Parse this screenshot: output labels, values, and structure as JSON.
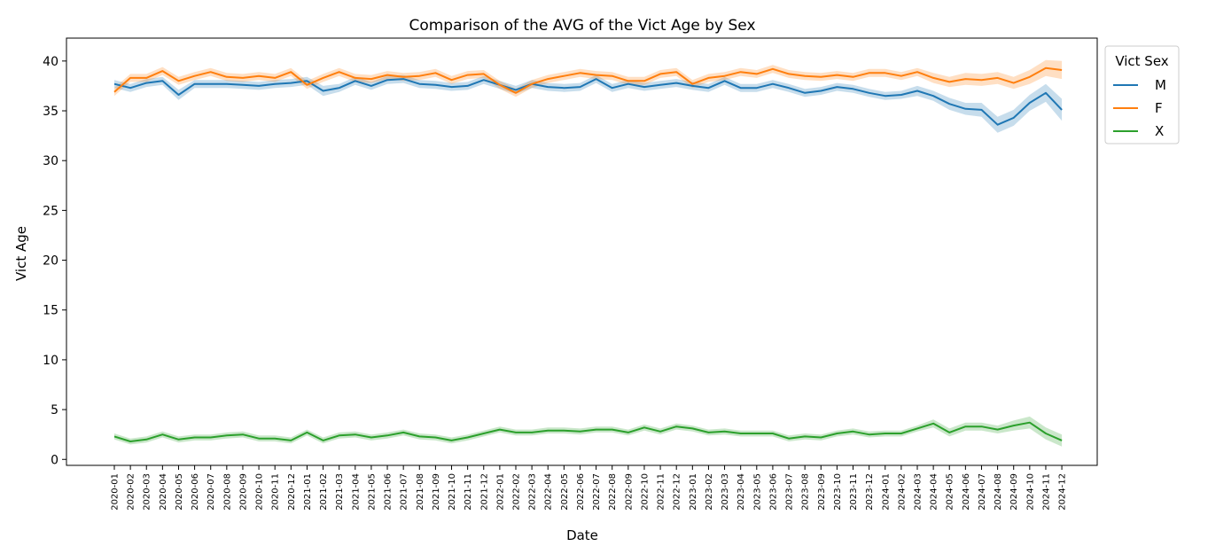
{
  "chart_data": {
    "type": "line",
    "title": "Comparison of the AVG of the Vict Age by Sex",
    "xlabel": "Date",
    "ylabel": "Vict Age",
    "ylim": [
      -0.6,
      42.3
    ],
    "yticks": [
      0,
      5,
      10,
      15,
      20,
      25,
      30,
      35,
      40
    ],
    "grid": false,
    "legend": {
      "title": "Vict Sex",
      "placement": "top-right outside"
    },
    "categories": [
      "2020-01",
      "2020-02",
      "2020-03",
      "2020-04",
      "2020-05",
      "2020-06",
      "2020-07",
      "2020-08",
      "2020-09",
      "2020-10",
      "2020-11",
      "2020-12",
      "2021-01",
      "2021-02",
      "2021-03",
      "2021-04",
      "2021-05",
      "2021-06",
      "2021-07",
      "2021-08",
      "2021-09",
      "2021-10",
      "2021-11",
      "2021-12",
      "2022-01",
      "2022-02",
      "2022-03",
      "2022-04",
      "2022-05",
      "2022-06",
      "2022-07",
      "2022-08",
      "2022-09",
      "2022-10",
      "2022-11",
      "2022-12",
      "2023-01",
      "2023-02",
      "2023-03",
      "2023-04",
      "2023-05",
      "2023-06",
      "2023-07",
      "2023-08",
      "2023-09",
      "2023-10",
      "2023-11",
      "2023-12",
      "2024-01",
      "2024-02",
      "2024-03",
      "2024-04",
      "2024-05",
      "2024-06",
      "2024-07",
      "2024-08",
      "2024-09",
      "2024-10",
      "2024-11",
      "2024-12"
    ],
    "series": [
      {
        "name": "M",
        "color": "#1f77b4",
        "values": [
          37.7,
          37.3,
          37.8,
          38.0,
          36.6,
          37.7,
          37.7,
          37.7,
          37.6,
          37.5,
          37.7,
          37.8,
          38.0,
          37.0,
          37.3,
          38.0,
          37.5,
          38.1,
          38.2,
          37.7,
          37.6,
          37.4,
          37.5,
          38.1,
          37.6,
          37.1,
          37.7,
          37.4,
          37.3,
          37.4,
          38.2,
          37.3,
          37.7,
          37.4,
          37.6,
          37.8,
          37.5,
          37.3,
          38.0,
          37.3,
          37.3,
          37.7,
          37.3,
          36.8,
          37.0,
          37.4,
          37.2,
          36.8,
          36.5,
          36.6,
          37.0,
          36.5,
          35.7,
          35.2,
          35.1,
          33.6,
          34.3,
          35.8,
          36.8,
          35.1
        ],
        "ci": [
          0.4,
          0.4,
          0.4,
          0.4,
          0.5,
          0.4,
          0.4,
          0.4,
          0.4,
          0.4,
          0.4,
          0.4,
          0.4,
          0.5,
          0.4,
          0.4,
          0.4,
          0.4,
          0.4,
          0.4,
          0.4,
          0.4,
          0.4,
          0.4,
          0.4,
          0.4,
          0.4,
          0.4,
          0.4,
          0.4,
          0.4,
          0.4,
          0.4,
          0.4,
          0.4,
          0.4,
          0.4,
          0.4,
          0.4,
          0.4,
          0.4,
          0.4,
          0.4,
          0.4,
          0.4,
          0.4,
          0.4,
          0.4,
          0.4,
          0.4,
          0.5,
          0.5,
          0.6,
          0.6,
          0.7,
          0.8,
          0.8,
          0.8,
          0.9,
          1.1
        ]
      },
      {
        "name": "F",
        "color": "#ff7f0e",
        "values": [
          36.9,
          38.3,
          38.3,
          39.0,
          38.0,
          38.5,
          38.9,
          38.4,
          38.3,
          38.5,
          38.3,
          38.9,
          37.6,
          38.3,
          38.9,
          38.3,
          38.2,
          38.6,
          38.4,
          38.5,
          38.8,
          38.1,
          38.6,
          38.7,
          37.6,
          36.8,
          37.7,
          38.2,
          38.5,
          38.8,
          38.6,
          38.5,
          38.0,
          38.0,
          38.7,
          38.9,
          37.7,
          38.3,
          38.5,
          38.9,
          38.7,
          39.2,
          38.7,
          38.5,
          38.4,
          38.6,
          38.4,
          38.8,
          38.8,
          38.5,
          38.9,
          38.3,
          37.9,
          38.2,
          38.1,
          38.3,
          37.8,
          38.4,
          39.3,
          39.1
        ],
        "ci": [
          0.4,
          0.4,
          0.4,
          0.4,
          0.4,
          0.4,
          0.4,
          0.4,
          0.4,
          0.4,
          0.4,
          0.4,
          0.4,
          0.4,
          0.4,
          0.4,
          0.4,
          0.4,
          0.4,
          0.4,
          0.4,
          0.4,
          0.4,
          0.4,
          0.4,
          0.4,
          0.4,
          0.4,
          0.4,
          0.4,
          0.4,
          0.4,
          0.4,
          0.4,
          0.4,
          0.4,
          0.4,
          0.4,
          0.4,
          0.4,
          0.4,
          0.4,
          0.4,
          0.4,
          0.4,
          0.4,
          0.4,
          0.4,
          0.4,
          0.4,
          0.4,
          0.5,
          0.5,
          0.6,
          0.6,
          0.6,
          0.6,
          0.7,
          0.8,
          0.9
        ]
      },
      {
        "name": "X",
        "color": "#2ca02c",
        "values": [
          2.3,
          1.8,
          2.0,
          2.5,
          2.0,
          2.2,
          2.2,
          2.4,
          2.5,
          2.1,
          2.1,
          1.9,
          2.7,
          1.9,
          2.4,
          2.5,
          2.2,
          2.4,
          2.7,
          2.3,
          2.2,
          1.9,
          2.2,
          2.6,
          3.0,
          2.7,
          2.7,
          2.9,
          2.9,
          2.8,
          3.0,
          3.0,
          2.7,
          3.2,
          2.8,
          3.3,
          3.1,
          2.7,
          2.8,
          2.6,
          2.6,
          2.6,
          2.1,
          2.3,
          2.2,
          2.6,
          2.8,
          2.5,
          2.6,
          2.6,
          3.1,
          3.6,
          2.7,
          3.3,
          3.3,
          3.0,
          3.4,
          3.7,
          2.6,
          1.9
        ],
        "ci": [
          0.3,
          0.3,
          0.3,
          0.3,
          0.3,
          0.3,
          0.3,
          0.3,
          0.3,
          0.3,
          0.3,
          0.3,
          0.3,
          0.3,
          0.3,
          0.3,
          0.3,
          0.3,
          0.3,
          0.3,
          0.3,
          0.3,
          0.3,
          0.3,
          0.3,
          0.3,
          0.3,
          0.3,
          0.3,
          0.3,
          0.3,
          0.3,
          0.3,
          0.3,
          0.3,
          0.3,
          0.3,
          0.3,
          0.3,
          0.3,
          0.3,
          0.3,
          0.3,
          0.3,
          0.3,
          0.3,
          0.3,
          0.3,
          0.3,
          0.3,
          0.3,
          0.4,
          0.4,
          0.4,
          0.4,
          0.4,
          0.5,
          0.6,
          0.6,
          0.6
        ]
      }
    ]
  }
}
